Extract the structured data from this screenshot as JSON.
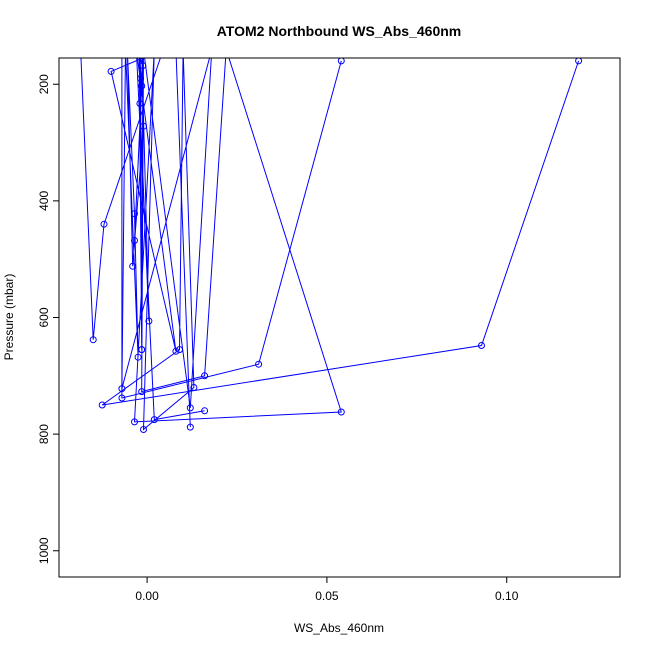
{
  "chart_data": {
    "type": "line",
    "title": "ATOM2 Northbound WS_Abs_460nm",
    "xlabel": "WS_Abs_460nm",
    "ylabel": "Pressure (mbar)",
    "xlim": [
      -0.0245,
      0.1315
    ],
    "ylim": [
      1045,
      155
    ],
    "y_reversed": true,
    "x_ticks": [
      0.0,
      0.05,
      0.1
    ],
    "x_tick_labels": [
      "0.00",
      "0.05",
      "0.10"
    ],
    "y_ticks": [
      200,
      400,
      600,
      800,
      1000
    ],
    "y_tick_labels": [
      "200",
      "400",
      "600",
      "800",
      "1000"
    ],
    "grid": false,
    "legend": "none",
    "series_color": "#0000ff",
    "marker": "open-circle",
    "series": [
      {
        "values": [
          {
            "x": -0.0185,
            "y": 140
          },
          {
            "x": -0.015,
            "y": 638
          },
          {
            "x": -0.012,
            "y": 440
          },
          {
            "x": 0.0045,
            "y": 140
          },
          {
            "x": -0.01,
            "y": 178
          },
          {
            "x": 0.008,
            "y": 658
          },
          {
            "x": -0.003,
            "y": 140
          },
          {
            "x": -0.0012,
            "y": 168
          },
          {
            "x": -0.0015,
            "y": 655
          },
          {
            "x": -0.002,
            "y": 140
          },
          {
            "x": -0.0018,
            "y": 190
          },
          {
            "x": -0.0015,
            "y": 655
          },
          {
            "x": -0.0022,
            "y": 140
          },
          {
            "x": -0.0015,
            "y": 203
          },
          {
            "x": -0.0035,
            "y": 468
          },
          {
            "x": -0.001,
            "y": 140
          },
          {
            "x": -0.002,
            "y": 233
          },
          {
            "x": 0.0005,
            "y": 606
          },
          {
            "x": -0.0015,
            "y": 140
          },
          {
            "x": -0.001,
            "y": 272
          },
          {
            "x": -0.004,
            "y": 512
          },
          {
            "x": -0.0055,
            "y": 140
          },
          {
            "x": -0.0035,
            "y": 422
          },
          {
            "x": -0.0025,
            "y": 668
          },
          {
            "x": -0.006,
            "y": 140
          },
          {
            "x": -0.007,
            "y": 722
          },
          {
            "x": 0.018,
            "y": 140
          },
          {
            "x": 0.012,
            "y": 755
          },
          {
            "x": -0.001,
            "y": 140
          },
          {
            "x": -0.0015,
            "y": 727
          },
          {
            "x": 0.016,
            "y": 700
          },
          {
            "x": 0.022,
            "y": 140
          },
          {
            "x": 0.054,
            "y": 762
          },
          {
            "x": -0.0035,
            "y": 779
          },
          {
            "x": 0.002,
            "y": 140
          },
          {
            "x": -0.001,
            "y": 792
          },
          {
            "x": 0.013,
            "y": 720
          },
          {
            "x": 0.01,
            "y": 140
          },
          {
            "x": 0.009,
            "y": 655
          },
          {
            "x": -0.0125,
            "y": 750
          },
          {
            "x": 0.093,
            "y": 648
          },
          {
            "x": 0.12,
            "y": 160
          }
        ]
      },
      {
        "values": [
          {
            "x": -0.007,
            "y": 140
          },
          {
            "x": -0.007,
            "y": 738
          },
          {
            "x": 0.031,
            "y": 680
          },
          {
            "x": 0.054,
            "y": 160
          }
        ]
      },
      {
        "values": [
          {
            "x": -0.003,
            "y": 140
          },
          {
            "x": 0.002,
            "y": 775
          },
          {
            "x": 0.016,
            "y": 760
          }
        ]
      },
      {
        "values": [
          {
            "x": 0.008,
            "y": 140
          },
          {
            "x": 0.012,
            "y": 788
          }
        ]
      }
    ]
  }
}
